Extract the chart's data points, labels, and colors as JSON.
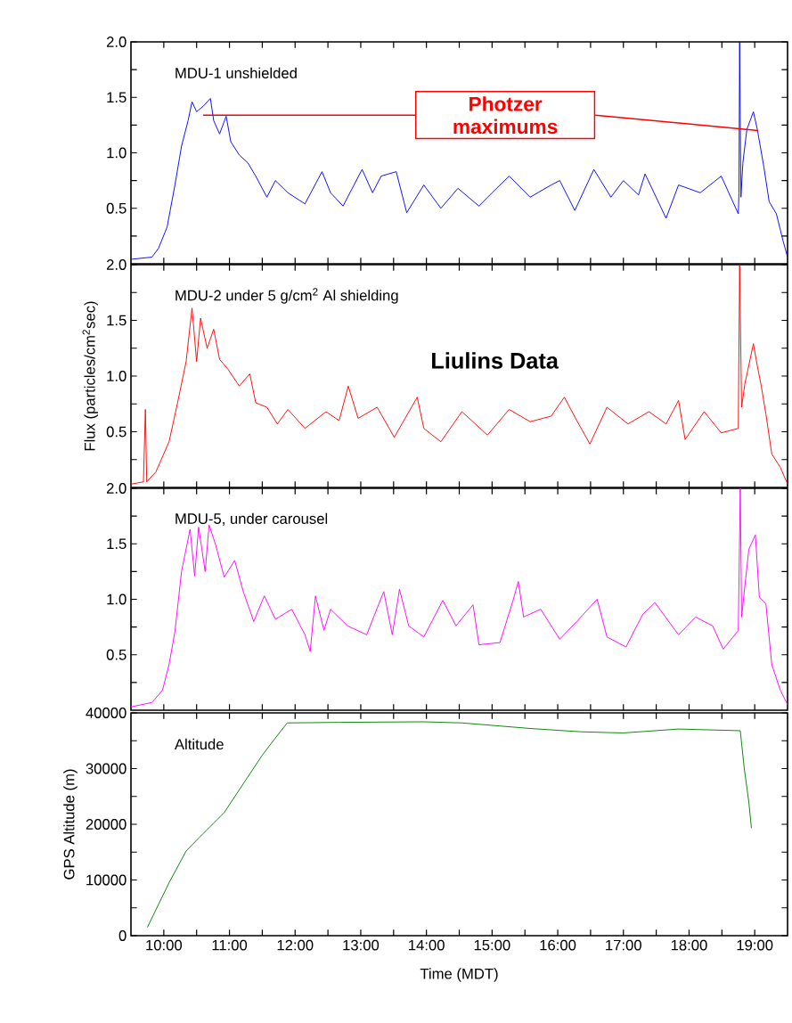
{
  "chart_data": [
    {
      "type": "line",
      "color": "#0000ff",
      "xlim": [
        9.5,
        19.5
      ],
      "ylim": [
        0,
        2
      ],
      "tick_labels": "y",
      "xticks": [
        10,
        10.5,
        11,
        11.5,
        12,
        12.5,
        13,
        13.5,
        14,
        14.5,
        15,
        15.5,
        16,
        16.5,
        17,
        17.5,
        18,
        18.5,
        19
      ],
      "yticks": [
        {
          "value": 0.25,
          "label": null
        },
        0.5,
        {
          "value": 0.75,
          "label": null
        },
        {
          "value": 1,
          "label": "1.0"
        },
        {
          "value": 1.25,
          "label": null
        },
        1.5,
        {
          "value": 1.75,
          "label": null
        },
        {
          "value": 2,
          "label": "2.0"
        }
      ],
      "annotations": [
        "MDU-1 unshielded",
        "Photzer maximums"
      ],
      "x": [
        9.5,
        9.82,
        9.92,
        10.05,
        10.17,
        10.27,
        10.37,
        10.43,
        10.5,
        10.6,
        10.71,
        10.76,
        10.85,
        10.95,
        11.02,
        11.15,
        11.28,
        11.4,
        11.57,
        11.7,
        11.89,
        12.15,
        12.41,
        12.54,
        12.73,
        13.02,
        13.18,
        13.31,
        13.54,
        13.7,
        13.96,
        14.22,
        14.48,
        14.8,
        15.0,
        15.26,
        15.58,
        15.9,
        16.03,
        16.26,
        16.55,
        16.81,
        17.0,
        17.23,
        17.33,
        17.65,
        17.84,
        18.17,
        18.49,
        18.75,
        18.76,
        18.77,
        18.79,
        18.82,
        18.88,
        18.98,
        19.04,
        19.14,
        19.22,
        19.33,
        19.43,
        19.5
      ],
      "values": [
        0.04,
        0.06,
        0.14,
        0.33,
        0.71,
        1.06,
        1.29,
        1.46,
        1.37,
        1.42,
        1.49,
        1.29,
        1.17,
        1.33,
        1.1,
        0.98,
        0.91,
        0.79,
        0.6,
        0.75,
        0.64,
        0.54,
        0.83,
        0.64,
        0.52,
        0.85,
        0.64,
        0.79,
        0.83,
        0.46,
        0.71,
        0.5,
        0.68,
        0.52,
        0.64,
        0.79,
        0.6,
        0.71,
        0.75,
        0.48,
        0.85,
        0.6,
        0.75,
        0.62,
        0.81,
        0.41,
        0.71,
        0.64,
        0.79,
        0.45,
        0.64,
        2.0,
        0.6,
        0.91,
        1.21,
        1.37,
        1.21,
        0.87,
        0.56,
        0.45,
        0.21,
        0.06
      ]
    },
    {
      "type": "line",
      "color": "#ff0000",
      "xlim": [
        9.5,
        19.5
      ],
      "ylim": [
        0,
        2
      ],
      "tick_labels": "y",
      "ylabel": "Flux (particles/cm$^{2}$sec)",
      "xticks": [
        10,
        10.5,
        11,
        11.5,
        12,
        12.5,
        13,
        13.5,
        14,
        14.5,
        15,
        15.5,
        16,
        16.5,
        17,
        17.5,
        18,
        18.5,
        19
      ],
      "yticks": [
        {
          "value": 0.25,
          "label": null
        },
        0.5,
        {
          "value": 0.75,
          "label": null
        },
        {
          "value": 1,
          "label": "1.0"
        },
        {
          "value": 1.25,
          "label": null
        },
        1.5,
        {
          "value": 1.75,
          "label": null
        },
        {
          "value": 2,
          "label": "2.0"
        }
      ],
      "annotations": [
        "MDU-2 under 5 g/cm$^{2}$ Al shielding",
        "Liulins Data"
      ],
      "x": [
        9.5,
        9.69,
        9.72,
        9.74,
        9.88,
        10.08,
        10.21,
        10.34,
        10.43,
        10.5,
        10.56,
        10.66,
        10.76,
        10.85,
        10.98,
        11.15,
        11.31,
        11.4,
        11.57,
        11.73,
        11.89,
        12.15,
        12.47,
        12.67,
        12.81,
        12.96,
        13.25,
        13.51,
        13.86,
        13.96,
        14.22,
        14.54,
        14.93,
        15.26,
        15.58,
        15.9,
        16.1,
        16.29,
        16.49,
        16.75,
        17.07,
        17.39,
        17.65,
        17.84,
        17.94,
        18.23,
        18.49,
        18.75,
        18.77,
        18.8,
        18.85,
        18.98,
        19.04,
        19.1,
        19.17,
        19.26,
        19.39,
        19.5
      ],
      "values": [
        0.03,
        0.05,
        0.7,
        0.05,
        0.14,
        0.41,
        0.76,
        1.13,
        1.61,
        1.13,
        1.52,
        1.25,
        1.42,
        1.15,
        1.06,
        0.91,
        1.02,
        0.76,
        0.72,
        0.57,
        0.7,
        0.53,
        0.68,
        0.6,
        0.91,
        0.62,
        0.72,
        0.45,
        0.81,
        0.53,
        0.41,
        0.68,
        0.47,
        0.7,
        0.59,
        0.64,
        0.81,
        0.6,
        0.39,
        0.72,
        0.57,
        0.68,
        0.57,
        0.78,
        0.43,
        0.68,
        0.49,
        0.53,
        2.0,
        0.72,
        0.93,
        1.29,
        1.09,
        0.91,
        0.66,
        0.3,
        0.18,
        0.03
      ]
    },
    {
      "type": "line",
      "color": "#ff00ff",
      "xlim": [
        9.5,
        19.5
      ],
      "ylim": [
        0,
        2
      ],
      "tick_labels": "y",
      "xticks": [
        10,
        10.5,
        11,
        11.5,
        12,
        12.5,
        13,
        13.5,
        14,
        14.5,
        15,
        15.5,
        16,
        16.5,
        17,
        17.5,
        18,
        18.5,
        19
      ],
      "yticks": [
        {
          "value": 0.25,
          "label": null
        },
        0.5,
        {
          "value": 0.75,
          "label": null
        },
        {
          "value": 1,
          "label": "1.0"
        },
        {
          "value": 1.25,
          "label": null
        },
        1.5,
        {
          "value": 1.75,
          "label": null
        },
        {
          "value": 2,
          "label": "2.0"
        }
      ],
      "annotations": [
        "MDU-5, under carousel"
      ],
      "x": [
        9.5,
        9.82,
        9.98,
        10.08,
        10.17,
        10.27,
        10.4,
        10.47,
        10.53,
        10.63,
        10.69,
        10.79,
        10.92,
        11.08,
        11.21,
        11.37,
        11.53,
        11.7,
        11.95,
        12.15,
        12.23,
        12.31,
        12.44,
        12.54,
        12.8,
        13.09,
        13.35,
        13.48,
        13.59,
        13.73,
        13.96,
        14.25,
        14.45,
        14.71,
        14.8,
        15.12,
        15.32,
        15.4,
        15.48,
        15.74,
        16.03,
        16.29,
        16.6,
        16.75,
        17.04,
        17.29,
        17.48,
        17.84,
        18.1,
        18.36,
        18.52,
        18.75,
        18.78,
        18.8,
        18.91,
        19.01,
        19.07,
        19.17,
        19.26,
        19.39,
        19.5
      ],
      "values": [
        0.03,
        0.07,
        0.18,
        0.41,
        0.71,
        1.25,
        1.63,
        1.21,
        1.65,
        1.25,
        1.67,
        1.49,
        1.2,
        1.35,
        1.07,
        0.8,
        1.03,
        0.82,
        0.91,
        0.68,
        0.53,
        1.03,
        0.72,
        0.91,
        0.76,
        0.68,
        1.07,
        0.68,
        1.09,
        0.76,
        0.66,
        0.99,
        0.76,
        0.95,
        0.59,
        0.61,
        0.99,
        1.16,
        0.84,
        0.91,
        0.64,
        0.8,
        1.0,
        0.66,
        0.57,
        0.86,
        0.97,
        0.68,
        0.84,
        0.76,
        0.55,
        0.72,
        2.0,
        0.84,
        1.45,
        1.58,
        1.02,
        0.96,
        0.41,
        0.18,
        0.05
      ]
    },
    {
      "type": "line",
      "color": "#008000",
      "xlim": [
        9.5,
        19.5
      ],
      "ylim": [
        0,
        40000
      ],
      "xlabel": "Time (MDT)",
      "ylabel": "GPS Altitude (m)",
      "xticks": [
        {
          "value": 10,
          "label": "10:00"
        },
        {
          "value": 10.5,
          "label": null
        },
        {
          "value": 11,
          "label": "11:00"
        },
        {
          "value": 11.5,
          "label": null
        },
        {
          "value": 12,
          "label": "12:00"
        },
        {
          "value": 12.5,
          "label": null
        },
        {
          "value": 13,
          "label": "13:00"
        },
        {
          "value": 13.5,
          "label": null
        },
        {
          "value": 14,
          "label": "14:00"
        },
        {
          "value": 14.5,
          "label": null
        },
        {
          "value": 15,
          "label": "15:00"
        },
        {
          "value": 15.5,
          "label": null
        },
        {
          "value": 16,
          "label": "16:00"
        },
        {
          "value": 16.5,
          "label": null
        },
        {
          "value": 17,
          "label": "17:00"
        },
        {
          "value": 17.5,
          "label": null
        },
        {
          "value": 18,
          "label": "18:00"
        },
        {
          "value": 18.5,
          "label": null
        },
        {
          "value": 19,
          "label": "19:00"
        }
      ],
      "yticks": [
        0,
        {
          "value": 5000,
          "label": null
        },
        10000,
        {
          "value": 15000,
          "label": null
        },
        20000,
        {
          "value": 25000,
          "label": null
        },
        30000,
        {
          "value": 35000,
          "label": null
        },
        40000
      ],
      "annotations": [
        "Altitude"
      ],
      "x": [
        9.75,
        10.08,
        10.34,
        10.53,
        10.92,
        11.24,
        11.5,
        11.7,
        11.88,
        12.67,
        13.96,
        14.54,
        15.58,
        16.36,
        17.0,
        17.84,
        18.78,
        18.84,
        18.91,
        18.95
      ],
      "values": [
        1500,
        9500,
        15200,
        17500,
        22100,
        27800,
        32400,
        35500,
        38200,
        38300,
        38400,
        38200,
        37200,
        36600,
        36400,
        37100,
        36800,
        30100,
        24000,
        19300
      ]
    }
  ]
}
